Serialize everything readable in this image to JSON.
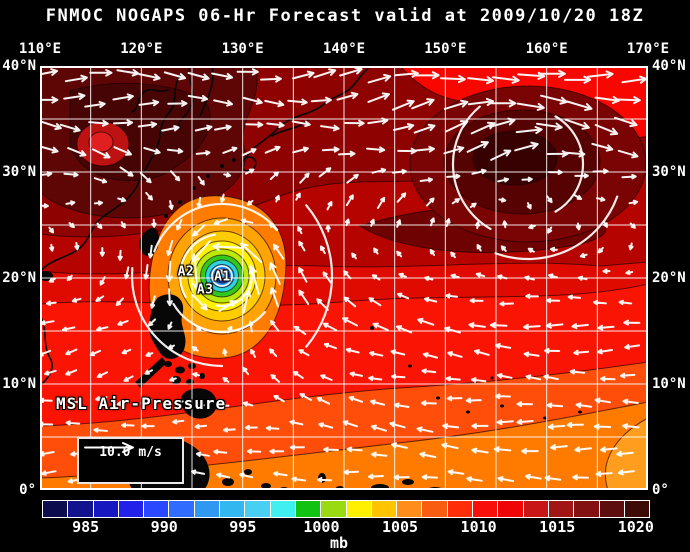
{
  "title": "FNMOC NOGAPS 06-Hr Forecast valid at 2009/10/20 18Z",
  "map": {
    "field_label": "MSL Air-Pressure",
    "wind_legend": {
      "label": "10.0 m/s"
    },
    "top_axis": [
      {
        "label": "110°E",
        "lon": 110
      },
      {
        "label": "120°E",
        "lon": 120
      },
      {
        "label": "130°E",
        "lon": 130
      },
      {
        "label": "140°E",
        "lon": 140
      },
      {
        "label": "150°E",
        "lon": 150
      },
      {
        "label": "160°E",
        "lon": 160
      },
      {
        "label": "170°E",
        "lon": 170
      }
    ],
    "side_axis": [
      {
        "label": "40°N",
        "lat": 40
      },
      {
        "label": "30°N",
        "lat": 30
      },
      {
        "label": "20°N",
        "lat": 20
      },
      {
        "label": "10°N",
        "lat": 10
      },
      {
        "label": "0°",
        "lat": 0
      }
    ],
    "storm_markers": [
      {
        "label": "A1",
        "lon": 128.0,
        "lat": 20.1
      },
      {
        "label": "A2",
        "lon": 124.4,
        "lat": 20.6
      },
      {
        "label": "A3",
        "lon": 126.3,
        "lat": 18.9
      }
    ]
  },
  "colorbar": {
    "unit": "mb",
    "labels": [
      "985",
      "990",
      "995",
      "1000",
      "1005",
      "1010",
      "1015",
      "1020"
    ],
    "segment_colors": [
      "#0b0b4e",
      "#12128e",
      "#1717bf",
      "#2121ea",
      "#2a48ff",
      "#2f6cff",
      "#2f99f2",
      "#32b7f0",
      "#49cff4",
      "#40eff0",
      "#12c212",
      "#99da12",
      "#ffef00",
      "#ffc400",
      "#ff8d1c",
      "#f95d12",
      "#ff2e08",
      "#f90f0a",
      "#ef0505",
      "#c81616",
      "#a21515",
      "#831111",
      "#5d0d0d",
      "#3e0a06"
    ]
  },
  "colors": {
    "background": "#000000",
    "text": "#ffffff",
    "grid": "#ffffff",
    "coastline": "#070707",
    "wind_arrow": "#ffffff"
  }
}
